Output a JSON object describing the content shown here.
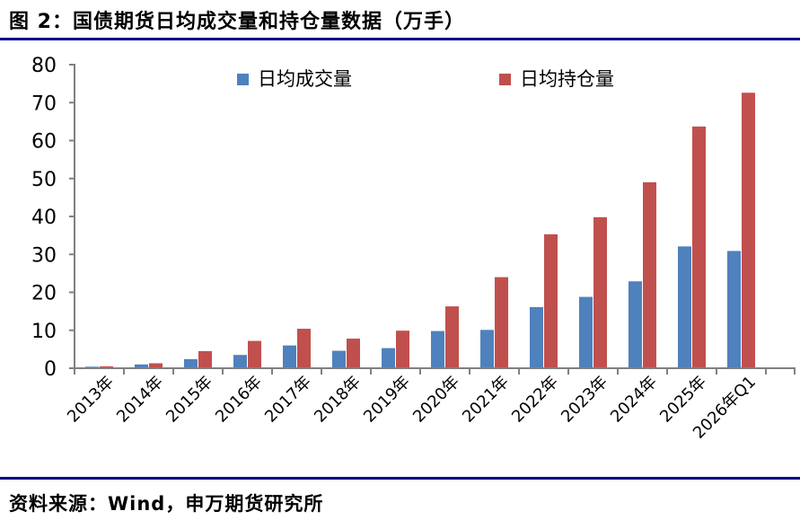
{
  "header": {
    "title": "图 2：国债期货日均成交量和持仓量数据（万手）"
  },
  "legend": {
    "items": [
      {
        "label": "日均成交量",
        "color": "#4F81BD"
      },
      {
        "label": "日均持仓量",
        "color": "#C0504D"
      }
    ]
  },
  "chart_data": {
    "type": "bar",
    "title": "图 2：国债期货日均成交量和持仓量数据（万手）",
    "unit": "万手",
    "categories": [
      "2013年",
      "2014年",
      "2015年",
      "2016年",
      "2017年",
      "2018年",
      "2019年",
      "2020年",
      "2021年",
      "2022年",
      "2023年",
      "2024年",
      "2025年",
      "2026年Q1"
    ],
    "series": [
      {
        "name": "日均成交量",
        "color": "#4F81BD",
        "values": [
          0.4,
          1.0,
          2.4,
          3.5,
          6.0,
          4.6,
          5.3,
          9.8,
          10.1,
          16.1,
          18.8,
          22.9,
          32.1,
          30.9
        ]
      },
      {
        "name": "日均持仓量",
        "color": "#C0504D",
        "values": [
          0.5,
          1.3,
          4.5,
          7.2,
          10.4,
          7.8,
          9.9,
          16.3,
          24.0,
          35.3,
          39.8,
          49.0,
          63.7,
          72.6
        ]
      }
    ],
    "ylim": [
      0,
      80
    ],
    "ytick_step": 10,
    "ytick_labels": [
      "0",
      "10",
      "20",
      "30",
      "40",
      "50",
      "60",
      "70",
      "80"
    ],
    "grid": false,
    "legend_position": "top-center"
  },
  "footer": {
    "source": "资料来源：Wind，申万期货研究所"
  },
  "style": {
    "accent_line_color": "#00008B",
    "axis_color": "#808080",
    "bar_blue": "#4F81BD",
    "bar_red": "#C0504D",
    "text_color": "#000000"
  }
}
